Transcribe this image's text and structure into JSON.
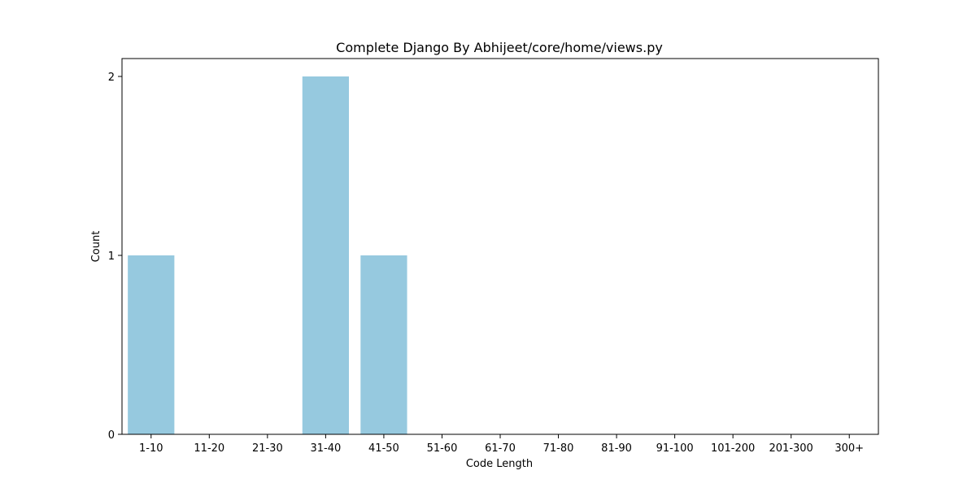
{
  "chart_data": {
    "type": "bar",
    "title": "Complete Django By Abhijeet/core/home/views.py",
    "xlabel": "Code Length",
    "ylabel": "Count",
    "categories": [
      "1-10",
      "11-20",
      "21-30",
      "31-40",
      "41-50",
      "51-60",
      "61-70",
      "71-80",
      "81-90",
      "91-100",
      "101-200",
      "201-300",
      "300+"
    ],
    "values": [
      1,
      0,
      0,
      2,
      1,
      0,
      0,
      0,
      0,
      0,
      0,
      0,
      0
    ],
    "yticks": [
      0,
      1,
      2
    ],
    "ylim": [
      0,
      2.1
    ],
    "grid": false,
    "legend": "none",
    "bar_color": "#96c9df"
  }
}
